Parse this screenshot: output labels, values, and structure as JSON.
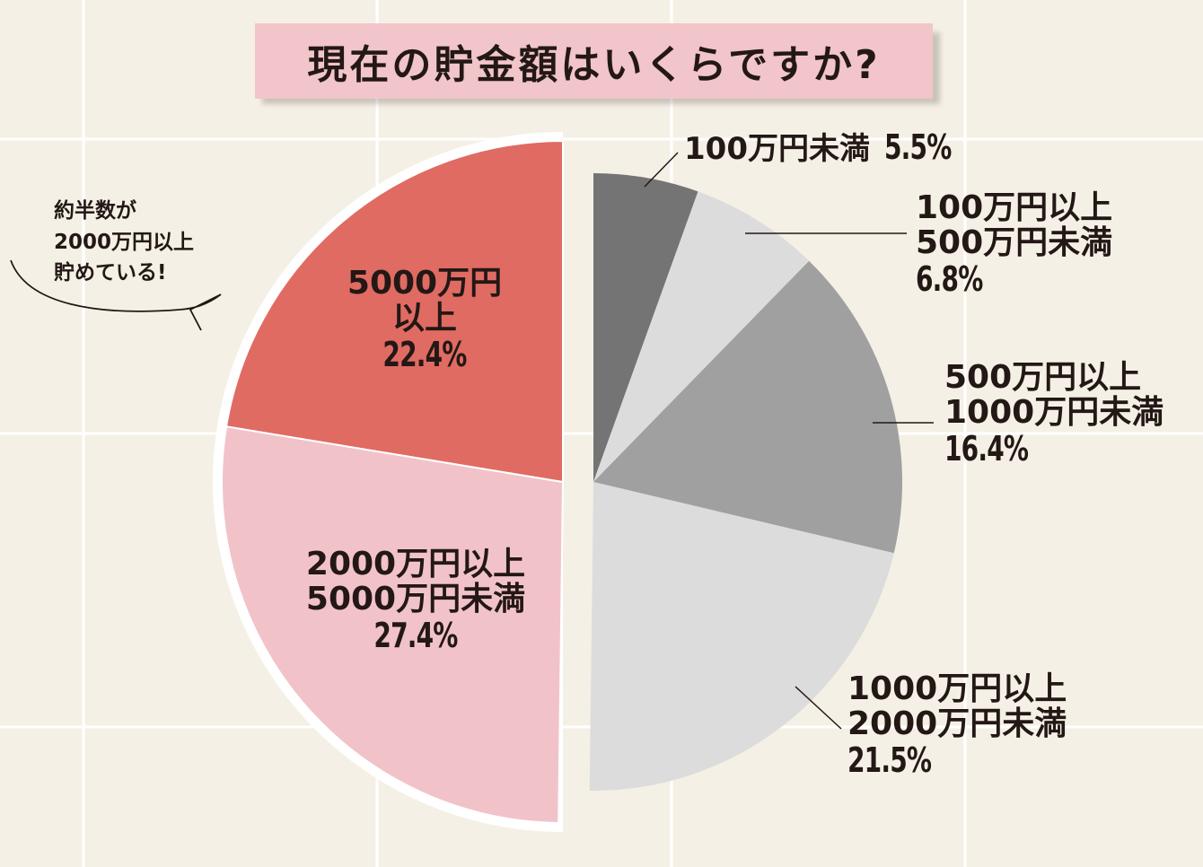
{
  "title": "現在の貯金額はいくらですか?",
  "callout": {
    "lines": [
      "約半数が",
      "2000万円以上",
      "貯めている!"
    ]
  },
  "colors": {
    "background": "#f5f0e6",
    "grid": "#ffffff",
    "title_bg": "#f1c5c9",
    "under_100": "#747474",
    "100_500": "#dcdcdc",
    "500_1000": "#a0a0a0",
    "1000_2000": "#dcdcdc",
    "2000_5000": "#f1c3c9",
    "over_5000": "#e06b62"
  },
  "chart_data": {
    "type": "pie",
    "title": "現在の貯金額はいくらですか?",
    "slices": [
      {
        "label": "100万円未満",
        "value": 5.5,
        "pct": "5.5%",
        "color": "#747474"
      },
      {
        "label": "100万円以上 500万円未満",
        "value": 6.8,
        "pct": "6.8%",
        "color": "#dcdcdc"
      },
      {
        "label": "500万円以上 1000万円未満",
        "value": 16.4,
        "pct": "16.4%",
        "color": "#a0a0a0"
      },
      {
        "label": "1000万円以上 2000万円未満",
        "value": 21.5,
        "pct": "21.5%",
        "color": "#dcdcdc"
      },
      {
        "label": "2000万円以上 5000万円未満",
        "value": 27.4,
        "pct": "27.4%",
        "color": "#f1c3c9"
      },
      {
        "label": "5000万円以上",
        "value": 22.4,
        "pct": "22.4%",
        "color": "#e06b62"
      }
    ]
  },
  "labels": {
    "s0": {
      "cat": "100万円未満",
      "pct": "5.5%"
    },
    "s1": {
      "l1": "100万円以上",
      "l2": "500万円未満",
      "pct": "6.8%"
    },
    "s2": {
      "l1": "500万円以上",
      "l2": "1000万円未満",
      "pct": "16.4%"
    },
    "s3": {
      "l1": "1000万円以上",
      "l2": "2000万円未満",
      "pct": "21.5%"
    },
    "s4": {
      "l1": "2000万円以上",
      "l2": "5000万円未満",
      "pct": "27.4%"
    },
    "s5": {
      "l1": "5000万円",
      "l2": "以上",
      "pct": "22.4%"
    }
  }
}
